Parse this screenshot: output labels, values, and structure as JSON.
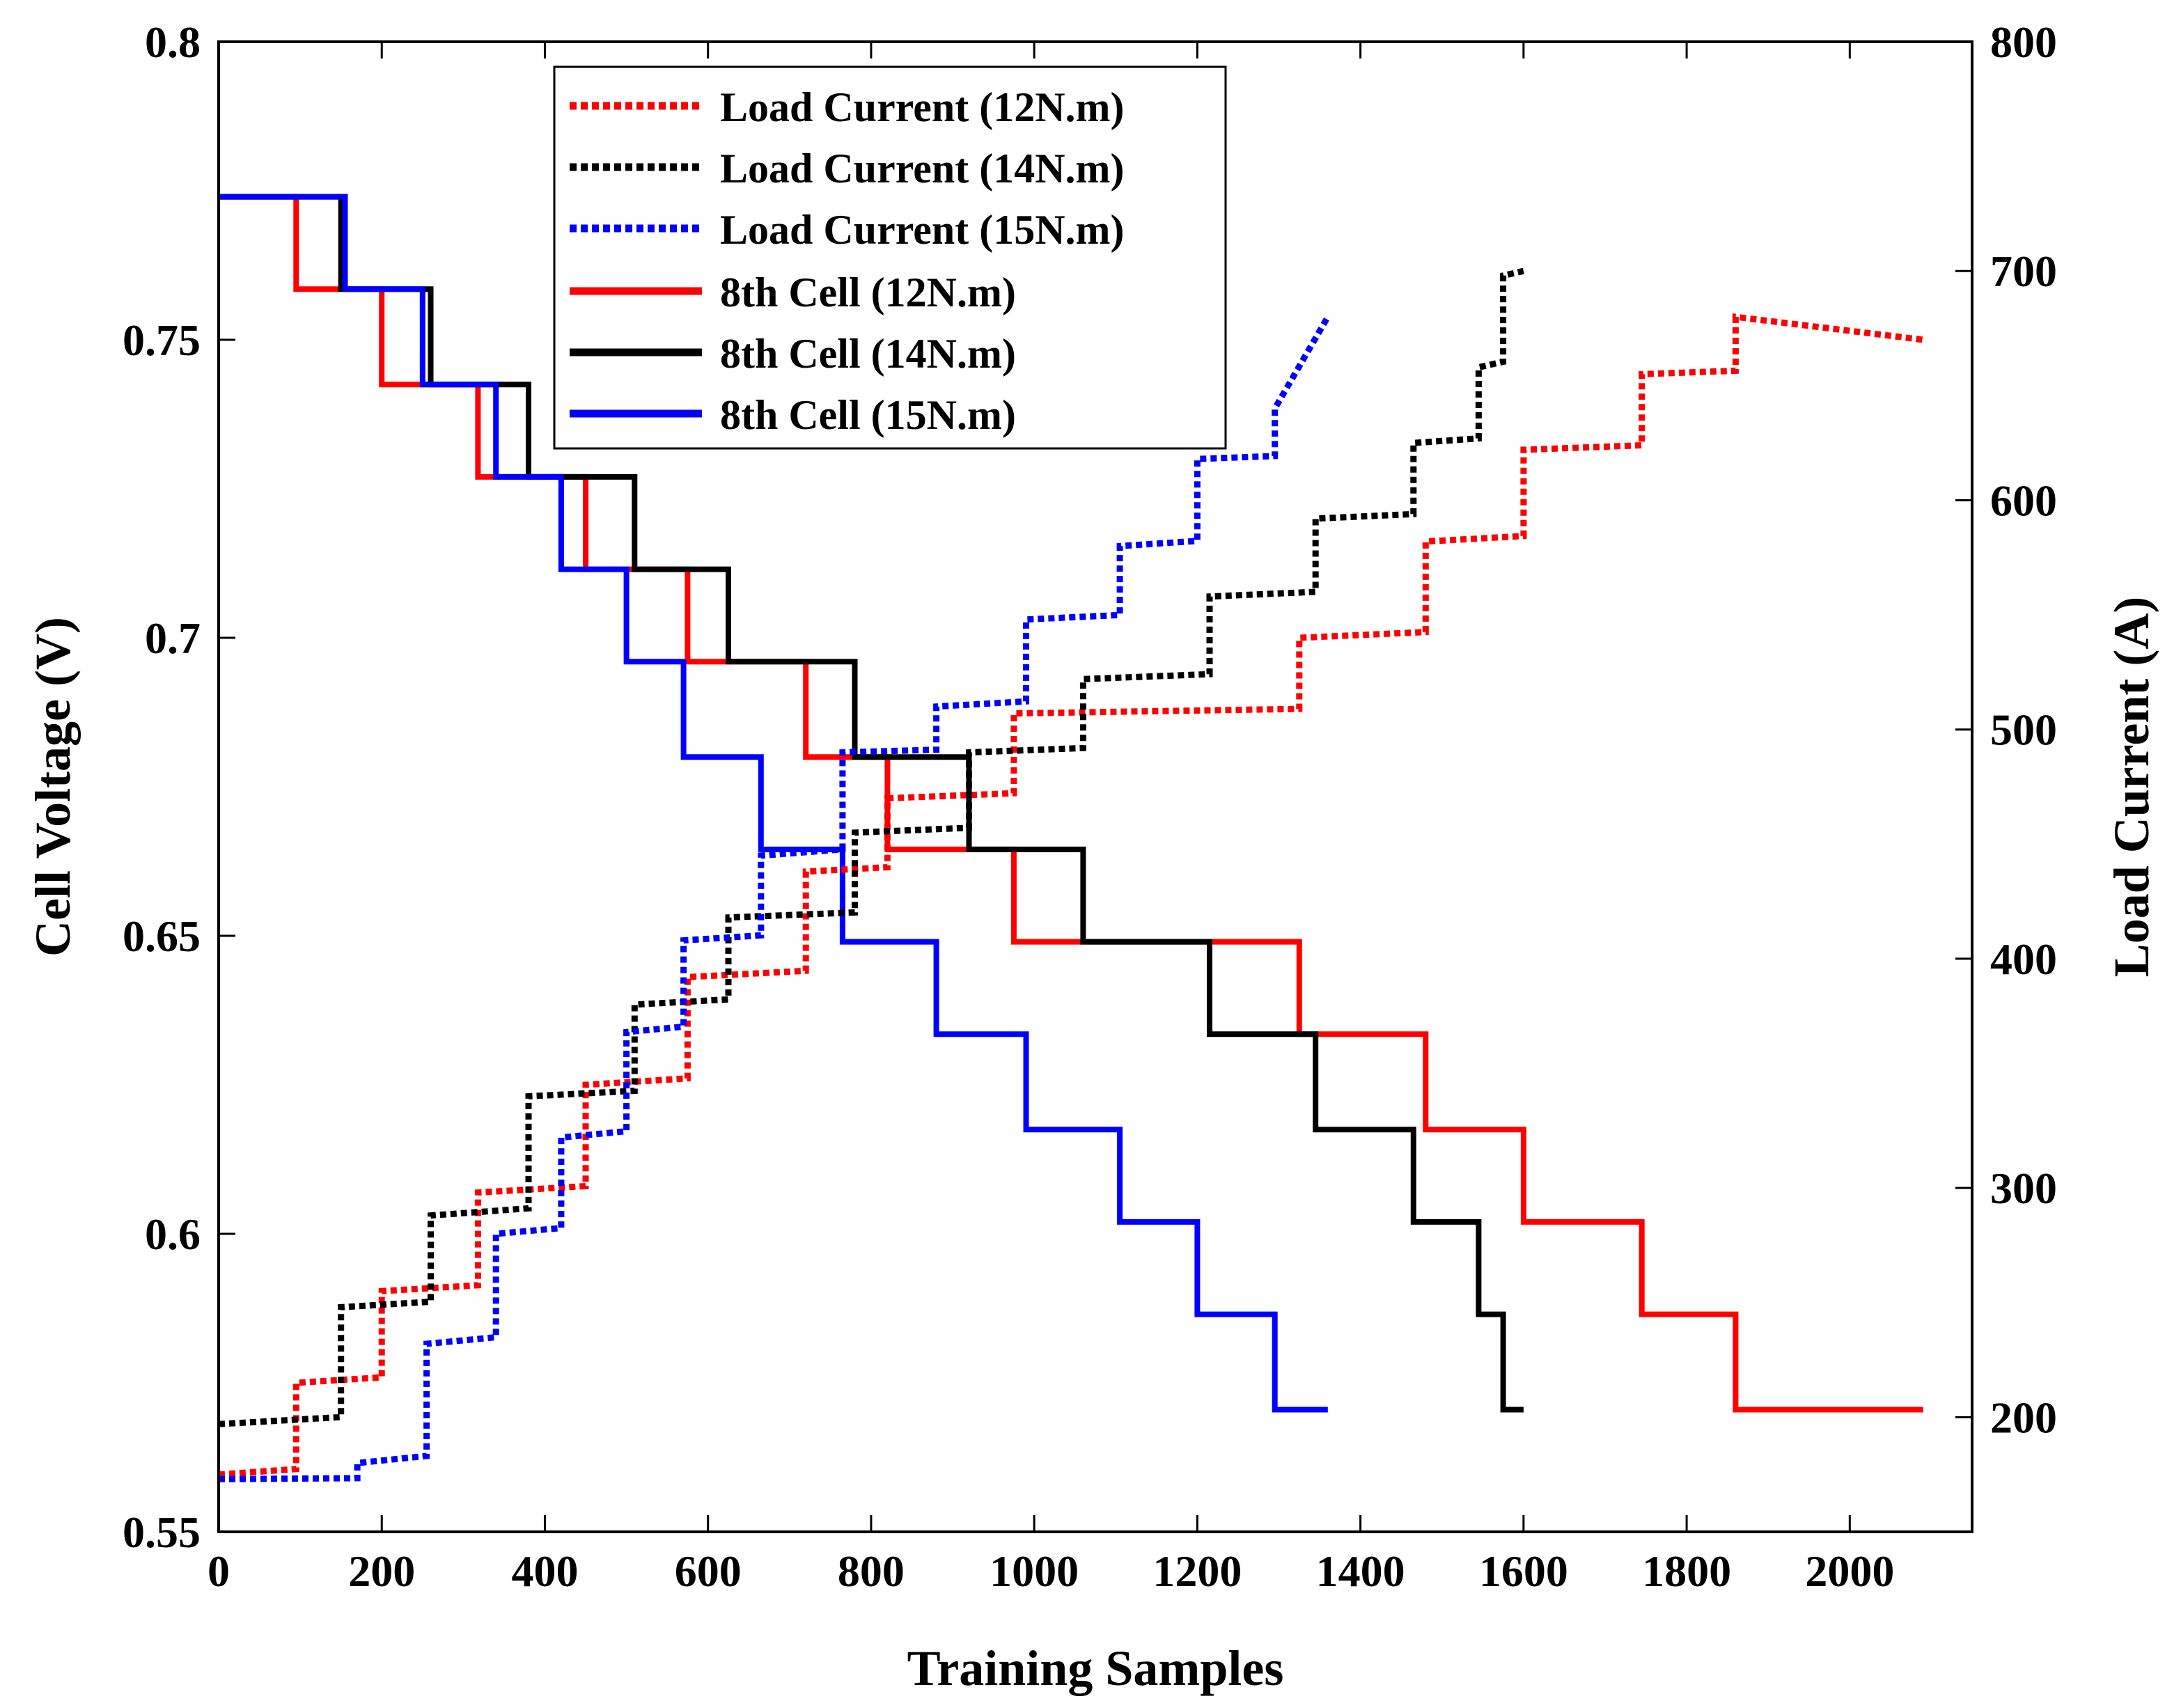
{
  "chart_data": {
    "type": "line",
    "title": "",
    "xlabel": "Training Samples",
    "ylabel": "Cell Voltage (V)",
    "y2label": "Load Current (A)",
    "xlim": [
      0,
      2150
    ],
    "ylim": [
      0.55,
      0.8
    ],
    "y2lim": [
      150,
      800
    ],
    "xticks": [
      0,
      200,
      400,
      600,
      800,
      1000,
      1200,
      1400,
      1600,
      1800,
      2000
    ],
    "yticks": [
      0.55,
      0.6,
      0.65,
      0.7,
      0.75,
      0.8
    ],
    "ytick_labels": [
      "0.55",
      "0.6",
      "0.65",
      "0.7",
      "0.75",
      "0.8"
    ],
    "y2ticks": [
      200,
      300,
      400,
      500,
      600,
      700,
      800
    ],
    "legend_position": "top-center",
    "series": [
      {
        "name": "Load Current (12N.m)",
        "axis": "right",
        "style": "dotted",
        "color": "#ff0000",
        "breaks": [
          0,
          95,
          200,
          318,
          450,
          575,
          720,
          820,
          975,
          1325,
          1480,
          1600,
          1745,
          1860,
          2090
        ],
        "levels": [
          175,
          215,
          255,
          298,
          345,
          392,
          438,
          470,
          507,
          540,
          582,
          622,
          655,
          680
        ],
        "end_level": 670
      },
      {
        "name": "Load Current (14N.m)",
        "axis": "right",
        "style": "dotted",
        "color": "#000000",
        "breaks": [
          0,
          150,
          260,
          380,
          510,
          625,
          780,
          920,
          1060,
          1215,
          1345,
          1465,
          1545,
          1575,
          1600
        ],
        "levels": [
          197,
          248,
          288,
          340,
          380,
          418,
          455,
          490,
          522,
          558,
          592,
          625,
          658,
          698
        ],
        "end_level": 700
      },
      {
        "name": "Load Current (15N.m)",
        "axis": "right",
        "style": "dotted",
        "color": "#0000ff",
        "breaks": [
          0,
          170,
          255,
          340,
          420,
          500,
          570,
          665,
          765,
          880,
          990,
          1105,
          1200,
          1295,
          1360
        ],
        "levels": [
          173,
          180,
          232,
          280,
          322,
          368,
          408,
          445,
          490,
          510,
          548,
          580,
          618,
          640
        ],
        "end_level": 680
      },
      {
        "name": "8th Cell (12N.m)",
        "axis": "left",
        "style": "solid",
        "color": "#ff0000",
        "breaks": [
          0,
          95,
          200,
          318,
          450,
          575,
          720,
          820,
          975,
          1325,
          1480,
          1600,
          1745,
          1860,
          2090
        ],
        "levels": [
          0.774,
          0.7585,
          0.7425,
          0.727,
          0.7115,
          0.696,
          0.68,
          0.6645,
          0.649,
          0.6335,
          0.6175,
          0.602,
          0.5865,
          0.5705
        ]
      },
      {
        "name": "8th Cell (14N.m)",
        "axis": "left",
        "style": "solid",
        "color": "#000000",
        "breaks": [
          0,
          150,
          260,
          380,
          510,
          625,
          780,
          920,
          1060,
          1215,
          1345,
          1465,
          1545,
          1575,
          1600
        ],
        "levels": [
          0.774,
          0.7585,
          0.7425,
          0.727,
          0.7115,
          0.696,
          0.68,
          0.6645,
          0.649,
          0.6335,
          0.6175,
          0.602,
          0.5865,
          0.5705
        ]
      },
      {
        "name": "8th Cell (15N.m)",
        "axis": "left",
        "style": "solid",
        "color": "#0000ff",
        "breaks": [
          0,
          155,
          250,
          340,
          420,
          500,
          570,
          665,
          765,
          880,
          990,
          1105,
          1200,
          1295,
          1360
        ],
        "levels": [
          0.774,
          0.7585,
          0.7425,
          0.727,
          0.7115,
          0.696,
          0.68,
          0.6645,
          0.649,
          0.6335,
          0.6175,
          0.602,
          0.5865,
          0.5705
        ]
      }
    ]
  }
}
